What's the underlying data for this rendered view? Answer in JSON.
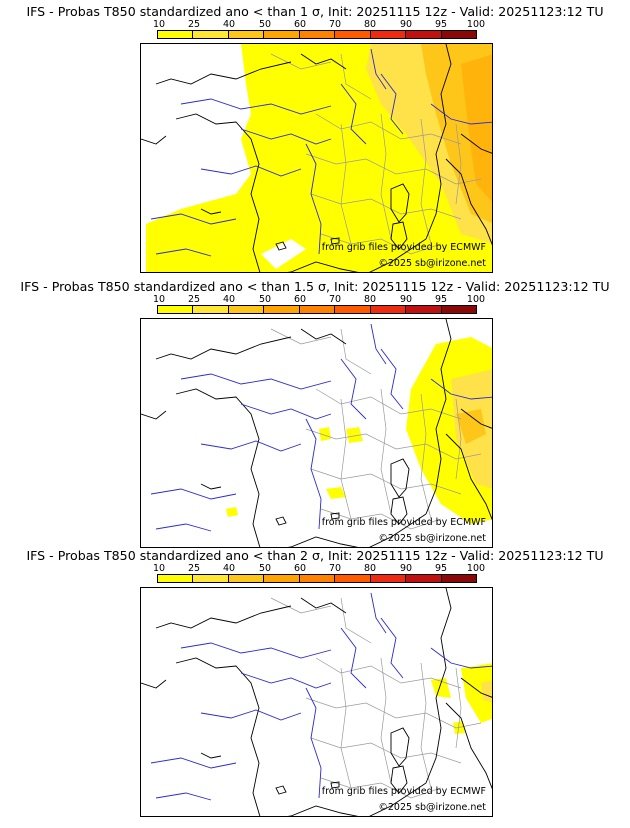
{
  "colorbar": {
    "ticks": [
      "10",
      "25",
      "40",
      "50",
      "60",
      "70",
      "80",
      "90",
      "95",
      "100"
    ],
    "colors": [
      "#ffff00",
      "#ffe733",
      "#ffc61a",
      "#ffa400",
      "#ff8300",
      "#ff5a00",
      "#ee2a10",
      "#c01010",
      "#8a0808",
      "#4a0000"
    ]
  },
  "panels": [
    {
      "title": "IFS - Probas T850  standardized ano < than 1 σ, Init: 20251115 12z - Valid: 20251123:12 TU",
      "threshold_sigma": 1,
      "source_credit": "from grib files provided by ECMWF",
      "copyright": "©2025 sb@irizone.net"
    },
    {
      "title": "IFS - Probas T850  standardized ano < than 1.5 σ, Init: 20251115 12z - Valid: 20251123:12 TU",
      "threshold_sigma": 1.5,
      "source_credit": "from grib files provided by ECMWF",
      "copyright": "©2025 sb@irizone.net"
    },
    {
      "title": "IFS - Probas T850  standardized ano < than 2 σ, Init: 20251115 12z - Valid: 20251123:12 TU",
      "threshold_sigma": 2,
      "source_credit": "from grib files provided by ECMWF",
      "copyright": "©2025 sb@irizone.net"
    }
  ]
}
